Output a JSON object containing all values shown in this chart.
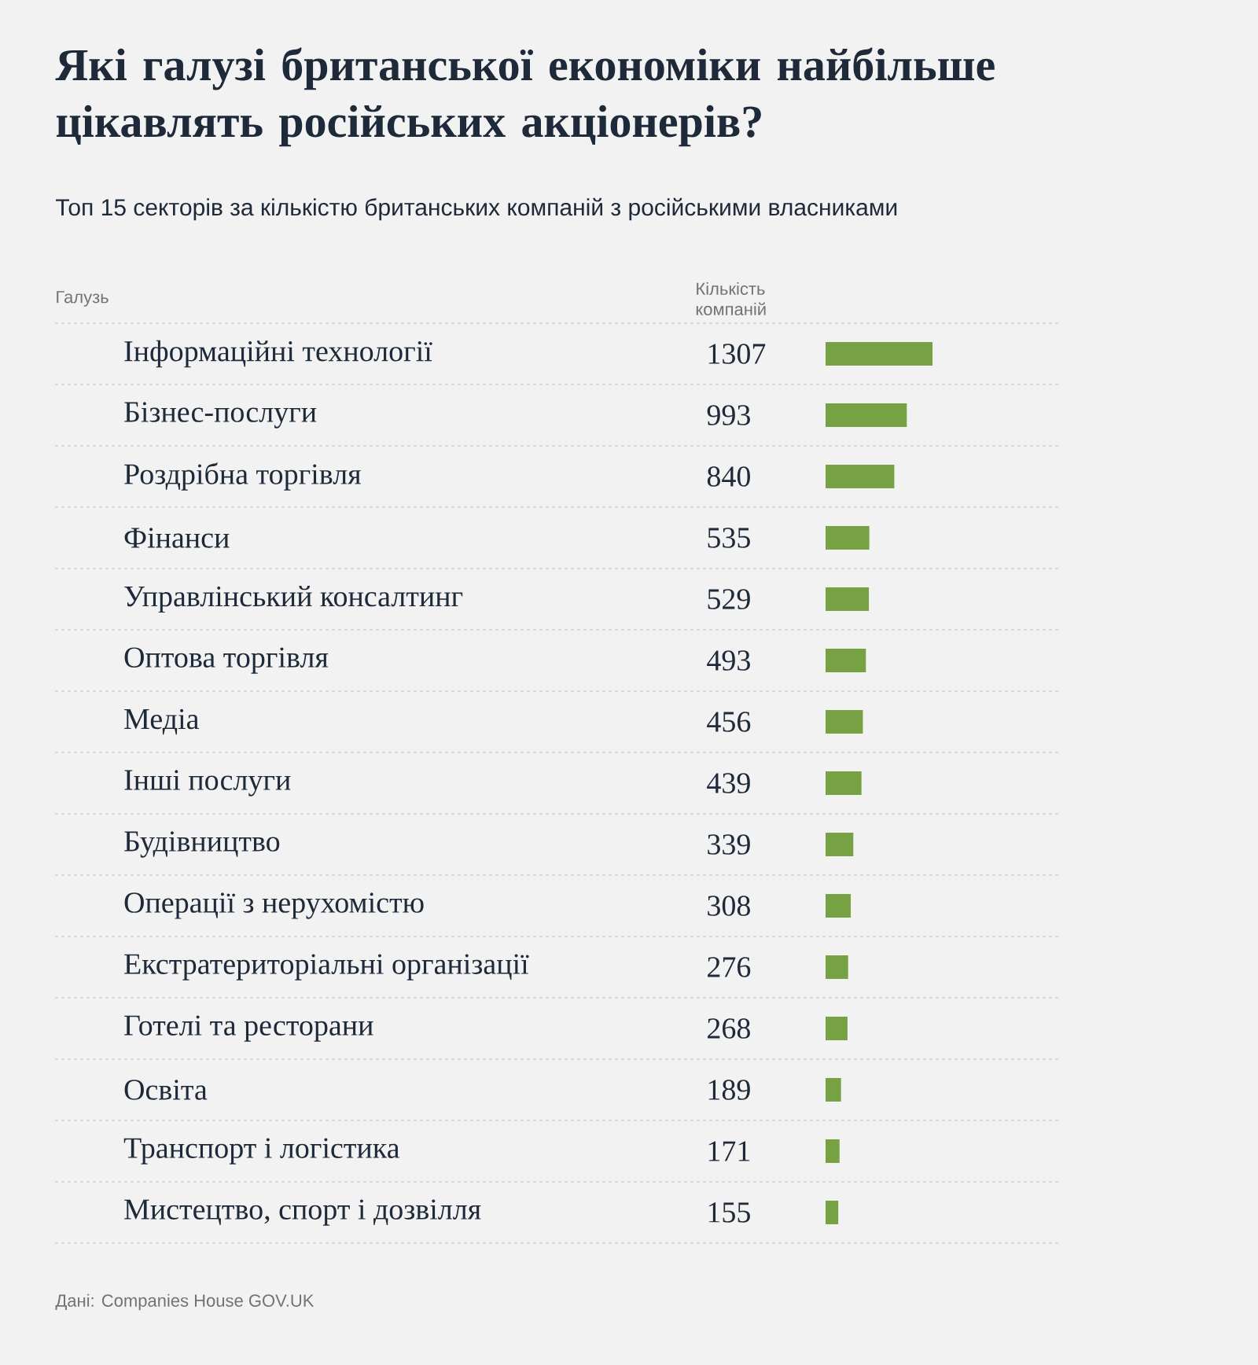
{
  "chart_data": {
    "type": "bar",
    "orientation": "horizontal",
    "title": "Які галузі британської економіки найбільше цікавлять російських акціонерів?",
    "subtitle": "Топ 15 секторів за кількістю британських компаній з російськими власниками",
    "xlabel": "Кількість компаній",
    "ylabel": "Галузь",
    "categories": [
      "Інформаційні технології",
      "Бізнес-послуги",
      "Роздрібна торгівля",
      "Фінанси",
      "Управлінський консалтинг",
      "Оптова торгівля",
      "Медіа",
      "Інші послуги",
      "Будівництво",
      "Операції з нерухомістю",
      "Екстратериторіальні організації",
      "Готелі та ресторани",
      "Освіта",
      "Транспорт і логістика",
      "Мистецтво, спорт і дозвілля"
    ],
    "values": [
      1307,
      993,
      840,
      535,
      529,
      493,
      456,
      439,
      339,
      308,
      276,
      268,
      189,
      171,
      155
    ],
    "color": "#76a244",
    "data_labels": true,
    "grid": "y",
    "annotations": [
      "Дані: Companies House GOV.UK"
    ]
  }
}
